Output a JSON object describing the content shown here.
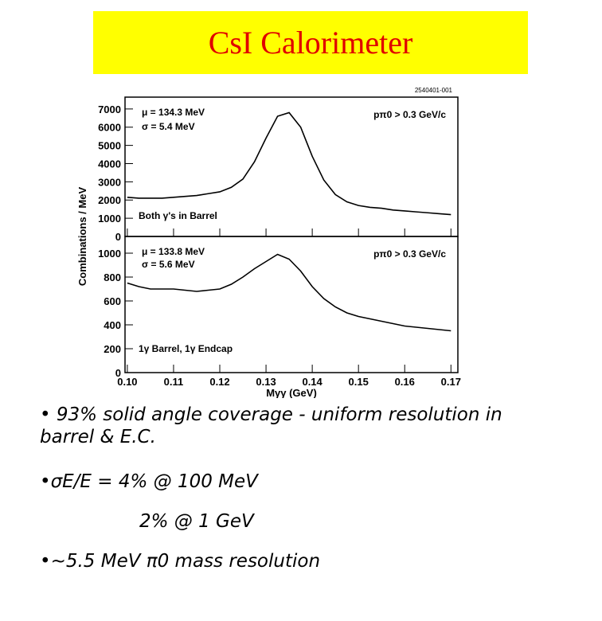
{
  "header": {
    "title": "CsI Calorimeter"
  },
  "figure_code": "2540401-001",
  "y_label": "Combinations / MeV",
  "chart_data": [
    {
      "type": "line",
      "color": "#000000",
      "x": [
        0.1,
        0.1025,
        0.105,
        0.1075,
        0.11,
        0.1125,
        0.115,
        0.1175,
        0.12,
        0.1225,
        0.125,
        0.1275,
        0.13,
        0.1325,
        0.135,
        0.1375,
        0.14,
        0.1425,
        0.145,
        0.1475,
        0.15,
        0.1525,
        0.155,
        0.1575,
        0.16,
        0.1625,
        0.165,
        0.1675,
        0.17
      ],
      "values": [
        2150,
        2100,
        2100,
        2100,
        2150,
        2200,
        2250,
        2350,
        2450,
        2700,
        3150,
        4100,
        5400,
        6600,
        6800,
        6000,
        4400,
        3100,
        2300,
        1900,
        1700,
        1600,
        1550,
        1450,
        1400,
        1350,
        1300,
        1250,
        1200
      ],
      "xlim": [
        0.0995,
        0.1715
      ],
      "xticks": [
        0.1,
        0.11,
        0.12,
        0.13,
        0.14,
        0.15,
        0.16,
        0.17
      ],
      "ylim": [
        0,
        7650
      ],
      "yticks": [
        0,
        1000,
        2000,
        3000,
        4000,
        5000,
        6000,
        7000
      ],
      "annotations": [
        "μ = 134.3 MeV",
        "σ = 5.4 MeV",
        "pπ0 > 0.3 GeV/c",
        "Both γ's in Barrel"
      ]
    },
    {
      "type": "line",
      "color": "#000000",
      "x": [
        0.1,
        0.1025,
        0.105,
        0.1075,
        0.11,
        0.1125,
        0.115,
        0.1175,
        0.12,
        0.1225,
        0.125,
        0.1275,
        0.13,
        0.1325,
        0.135,
        0.1375,
        0.14,
        0.1425,
        0.145,
        0.1475,
        0.15,
        0.1525,
        0.155,
        0.1575,
        0.16,
        0.1625,
        0.165,
        0.1675,
        0.17
      ],
      "values": [
        750,
        720,
        700,
        700,
        700,
        690,
        680,
        690,
        700,
        740,
        800,
        870,
        930,
        990,
        950,
        850,
        720,
        620,
        550,
        500,
        470,
        450,
        430,
        410,
        390,
        380,
        370,
        360,
        350
      ],
      "xlim": [
        0.0995,
        0.1715
      ],
      "xticks": [
        {
          "value": 0.1,
          "label": "0.10"
        },
        0.11,
        0.12,
        0.13,
        0.14,
        0.15,
        0.16,
        0.17
      ],
      "ylim": [
        0,
        1140
      ],
      "yticks": [
        0,
        200,
        400,
        600,
        800,
        1000
      ],
      "x_label": "Mγγ (GeV)",
      "annotations": [
        "μ = 133.8 MeV",
        "σ = 5.6 MeV",
        "pπ0 > 0.3 GeV/c",
        "1γ Barrel, 1γ Endcap"
      ]
    }
  ],
  "bullets": [
    "• 93% solid angle coverage - uniform resolution in",
    "barrel & E.C.",
    "•σE/E = 4% @ 100 MeV",
    "2% @ 1 GeV",
    "•~5.5 MeV π0 mass resolution"
  ]
}
